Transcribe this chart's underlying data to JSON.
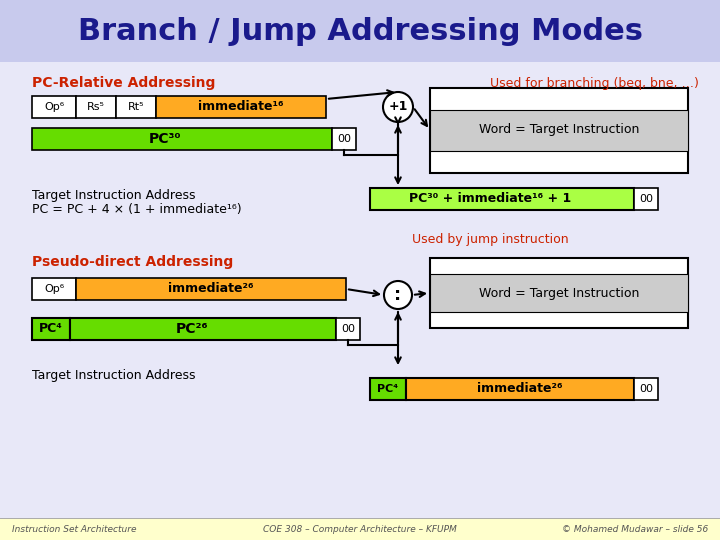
{
  "title": "Branch / Jump Addressing Modes",
  "title_color": "#1a1a8c",
  "title_bg": "#c8caed",
  "bg_color": "#e8e8f8",
  "footer_bg": "#ffffcc",
  "footer_texts": [
    "Instruction Set Architecture",
    "COE 308 – Computer Architecture – KFUPM",
    "© Mohamed Mudawar – slide 56"
  ],
  "red_color": "#cc2200",
  "navy_color": "#1a1a8c",
  "green_bright": "#66dd00",
  "green_light": "#aaff44",
  "orange_fill": "#ffaa22",
  "white_fill": "#ffffff",
  "gray_fill": "#cccccc",
  "black": "#000000"
}
